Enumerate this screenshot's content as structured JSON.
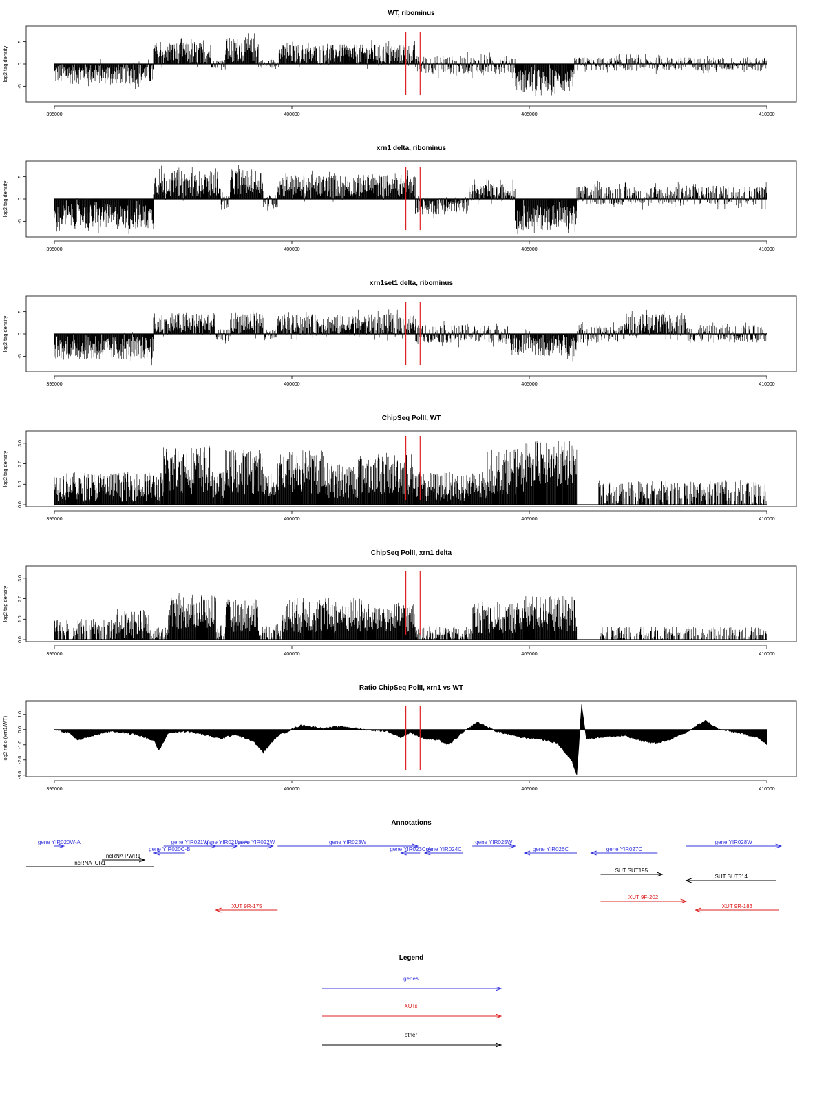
{
  "colors": {
    "gene": "#3333dd",
    "xut": "#dd2222",
    "other": "#000000",
    "marker": "#dd2222",
    "signal": "#000000"
  },
  "chart_data": [
    {
      "type": "bar",
      "title": "WT, ribominus",
      "ylabel": "log2 tag density",
      "xlim": [
        395000,
        410000
      ],
      "ylim": [
        -8.5,
        8.5
      ],
      "x_ticks": [
        395000,
        400000,
        405000,
        410000
      ],
      "y_ticks": [
        -5,
        0,
        5
      ],
      "markers": [
        402400,
        402700
      ],
      "segments": [
        {
          "start": 395000,
          "end": 397100,
          "mean": -2.2,
          "amp": 2.3
        },
        {
          "start": 397100,
          "end": 398300,
          "mean": 2.4,
          "amp": 2.5
        },
        {
          "start": 398300,
          "end": 398600,
          "mean": 0.1,
          "amp": 1.0
        },
        {
          "start": 398600,
          "end": 399300,
          "mean": 3.2,
          "amp": 2.8
        },
        {
          "start": 399300,
          "end": 399700,
          "mean": 0.1,
          "amp": 1.0
        },
        {
          "start": 399700,
          "end": 402600,
          "mean": 2.2,
          "amp": 2.2
        },
        {
          "start": 402600,
          "end": 404700,
          "mean": -0.2,
          "amp": 2.0
        },
        {
          "start": 404700,
          "end": 405950,
          "mean": -3.8,
          "amp": 2.6
        },
        {
          "start": 405950,
          "end": 410000,
          "mean": 0.0,
          "amp": 1.5
        }
      ]
    },
    {
      "type": "bar",
      "title": "xrn1 delta, ribominus",
      "ylabel": "log2 tag density",
      "xlim": [
        395000,
        410000
      ],
      "ylim": [
        -8.5,
        8.5
      ],
      "x_ticks": [
        395000,
        400000,
        405000,
        410000
      ],
      "y_ticks": [
        -5,
        0,
        5
      ],
      "markers": [
        402400,
        402700
      ],
      "segments": [
        {
          "start": 395000,
          "end": 397100,
          "mean": -4.0,
          "amp": 2.8
        },
        {
          "start": 397100,
          "end": 398500,
          "mean": 3.5,
          "amp": 2.8
        },
        {
          "start": 398500,
          "end": 398700,
          "mean": -0.5,
          "amp": 1.5
        },
        {
          "start": 398700,
          "end": 399400,
          "mean": 3.8,
          "amp": 2.8
        },
        {
          "start": 399400,
          "end": 399700,
          "mean": -0.5,
          "amp": 1.5
        },
        {
          "start": 399700,
          "end": 402600,
          "mean": 3.0,
          "amp": 2.5
        },
        {
          "start": 402600,
          "end": 403700,
          "mean": -1.5,
          "amp": 2.0
        },
        {
          "start": 403700,
          "end": 404700,
          "mean": 1.5,
          "amp": 2.0
        },
        {
          "start": 404700,
          "end": 406000,
          "mean": -4.2,
          "amp": 2.8
        },
        {
          "start": 406000,
          "end": 410000,
          "mean": 0.8,
          "amp": 2.2
        }
      ]
    },
    {
      "type": "bar",
      "title": "xrn1set1 delta, ribominus",
      "ylabel": "log2 tag density",
      "xlim": [
        395000,
        410000
      ],
      "ylim": [
        -8.5,
        8.5
      ],
      "x_ticks": [
        395000,
        400000,
        405000,
        410000
      ],
      "y_ticks": [
        -5,
        0,
        5
      ],
      "markers": [
        402400,
        402700
      ],
      "segments": [
        {
          "start": 395000,
          "end": 397100,
          "mean": -3.2,
          "amp": 2.6
        },
        {
          "start": 397100,
          "end": 398400,
          "mean": 2.2,
          "amp": 2.5
        },
        {
          "start": 398400,
          "end": 398700,
          "mean": -0.3,
          "amp": 1.3
        },
        {
          "start": 398700,
          "end": 399400,
          "mean": 2.5,
          "amp": 2.6
        },
        {
          "start": 399400,
          "end": 399700,
          "mean": -0.3,
          "amp": 1.3
        },
        {
          "start": 399700,
          "end": 402600,
          "mean": 2.0,
          "amp": 2.4
        },
        {
          "start": 402600,
          "end": 404600,
          "mean": 0.0,
          "amp": 2.0
        },
        {
          "start": 404600,
          "end": 406000,
          "mean": -2.5,
          "amp": 2.5
        },
        {
          "start": 406000,
          "end": 407000,
          "mean": 0.0,
          "amp": 2.0
        },
        {
          "start": 407000,
          "end": 408300,
          "mean": 2.0,
          "amp": 2.5
        },
        {
          "start": 408300,
          "end": 410000,
          "mean": 0.0,
          "amp": 2.0
        }
      ]
    },
    {
      "type": "bar",
      "title": "ChipSeq PolII, WT",
      "ylabel": "log2 tag density",
      "xlim": [
        395000,
        410000
      ],
      "ylim": [
        -0.1,
        3.6
      ],
      "x_ticks": [
        395000,
        400000,
        405000,
        410000
      ],
      "y_ticks": [
        0.0,
        1.0,
        2.0,
        3.0
      ],
      "markers": [
        402400,
        402700
      ],
      "segments": [
        {
          "start": 395000,
          "end": 397300,
          "mean": 0.8,
          "amp": 0.9
        },
        {
          "start": 397300,
          "end": 398300,
          "mean": 1.6,
          "amp": 1.5
        },
        {
          "start": 398300,
          "end": 398600,
          "mean": 0.9,
          "amp": 0.8
        },
        {
          "start": 398600,
          "end": 399400,
          "mean": 1.5,
          "amp": 1.4
        },
        {
          "start": 399400,
          "end": 399700,
          "mean": 0.9,
          "amp": 0.8
        },
        {
          "start": 399700,
          "end": 400700,
          "mean": 1.5,
          "amp": 1.4
        },
        {
          "start": 400700,
          "end": 401400,
          "mean": 1.1,
          "amp": 1.1
        },
        {
          "start": 401400,
          "end": 402600,
          "mean": 1.4,
          "amp": 1.3
        },
        {
          "start": 402600,
          "end": 404100,
          "mean": 0.8,
          "amp": 0.9
        },
        {
          "start": 404100,
          "end": 404900,
          "mean": 1.5,
          "amp": 1.4
        },
        {
          "start": 404900,
          "end": 406000,
          "mean": 1.9,
          "amp": 1.4
        },
        {
          "start": 406000,
          "end": 406450,
          "mean": 0.0,
          "amp": 0.0
        },
        {
          "start": 406450,
          "end": 410000,
          "mean": 0.5,
          "amp": 0.8
        }
      ]
    },
    {
      "type": "bar",
      "title": "ChipSeq PolII, xrn1 delta",
      "ylabel": "log2 tag density",
      "xlim": [
        395000,
        410000
      ],
      "ylim": [
        -0.1,
        3.6
      ],
      "x_ticks": [
        395000,
        400000,
        405000,
        410000
      ],
      "y_ticks": [
        0.0,
        1.0,
        2.0,
        3.0
      ],
      "markers": [
        402400,
        402700
      ],
      "segments": [
        {
          "start": 395000,
          "end": 396300,
          "mean": 0.4,
          "amp": 0.7
        },
        {
          "start": 396300,
          "end": 397000,
          "mean": 0.7,
          "amp": 0.9
        },
        {
          "start": 397000,
          "end": 397400,
          "mean": 0.3,
          "amp": 0.4
        },
        {
          "start": 397400,
          "end": 398400,
          "mean": 1.3,
          "amp": 1.1
        },
        {
          "start": 398400,
          "end": 398600,
          "mean": 0.4,
          "amp": 0.4
        },
        {
          "start": 398600,
          "end": 399300,
          "mean": 1.1,
          "amp": 1.0
        },
        {
          "start": 399300,
          "end": 399800,
          "mean": 0.4,
          "amp": 0.4
        },
        {
          "start": 399800,
          "end": 401500,
          "mean": 1.1,
          "amp": 1.1
        },
        {
          "start": 401500,
          "end": 402600,
          "mean": 1.0,
          "amp": 0.9
        },
        {
          "start": 402600,
          "end": 403800,
          "mean": 0.3,
          "amp": 0.4
        },
        {
          "start": 403800,
          "end": 404800,
          "mean": 1.0,
          "amp": 1.0
        },
        {
          "start": 404800,
          "end": 406000,
          "mean": 1.2,
          "amp": 1.1
        },
        {
          "start": 406000,
          "end": 406500,
          "mean": 0.0,
          "amp": 0.0
        },
        {
          "start": 406500,
          "end": 410000,
          "mean": 0.2,
          "amp": 0.5
        }
      ]
    },
    {
      "type": "area",
      "title": "Ratio ChipSeq PolII, xrn1 vs WT",
      "ylabel": "log2 ratio (xrn1/WT)",
      "xlim": [
        395000,
        410000
      ],
      "ylim": [
        -3.1,
        1.9
      ],
      "x_ticks": [
        395000,
        400000,
        405000,
        410000
      ],
      "y_ticks": [
        -3,
        -2,
        -1,
        0,
        1
      ],
      "markers": [
        402400,
        402700
      ],
      "profile": [
        [
          395000,
          0.0
        ],
        [
          395300,
          -0.2
        ],
        [
          395500,
          -0.7
        ],
        [
          395800,
          -0.4
        ],
        [
          396200,
          -0.1
        ],
        [
          396700,
          -0.3
        ],
        [
          397100,
          -0.7
        ],
        [
          397200,
          -1.4
        ],
        [
          397400,
          -0.2
        ],
        [
          397800,
          -0.1
        ],
        [
          398100,
          -0.3
        ],
        [
          398500,
          -0.6
        ],
        [
          398800,
          -0.3
        ],
        [
          399200,
          -0.8
        ],
        [
          399400,
          -1.5
        ],
        [
          399700,
          -0.4
        ],
        [
          400200,
          0.3
        ],
        [
          400600,
          0.1
        ],
        [
          401100,
          0.2
        ],
        [
          401500,
          0.0
        ],
        [
          402000,
          -0.1
        ],
        [
          402300,
          -0.5
        ],
        [
          402500,
          -0.2
        ],
        [
          402800,
          -0.6
        ],
        [
          403100,
          -0.7
        ],
        [
          403300,
          -1.0
        ],
        [
          403600,
          -0.2
        ],
        [
          403900,
          0.5
        ],
        [
          404300,
          -0.1
        ],
        [
          404800,
          -0.5
        ],
        [
          405200,
          -0.6
        ],
        [
          405600,
          -0.9
        ],
        [
          405900,
          -2.1
        ],
        [
          406000,
          -3.0
        ],
        [
          406100,
          1.7
        ],
        [
          406200,
          -0.6
        ],
        [
          406500,
          -0.5
        ],
        [
          407000,
          -0.4
        ],
        [
          407300,
          -0.7
        ],
        [
          407700,
          -0.9
        ],
        [
          408000,
          -0.6
        ],
        [
          408300,
          -0.2
        ],
        [
          408700,
          0.6
        ],
        [
          409000,
          0.0
        ],
        [
          409400,
          -0.2
        ],
        [
          409800,
          -0.5
        ],
        [
          410000,
          -1.0
        ]
      ]
    }
  ],
  "annotations": {
    "title": "Annotations",
    "xlim": [
      395000,
      410000
    ],
    "features": [
      {
        "label": "gene YIR020W-A",
        "type": "gene",
        "start": 395000,
        "end": 395200,
        "strand": "+",
        "row": 0
      },
      {
        "label": "gene YIR021W",
        "type": "gene",
        "start": 397300,
        "end": 398400,
        "strand": "+",
        "row": 0
      },
      {
        "label": "gene YIR021W-A",
        "type": "gene",
        "start": 398400,
        "end": 398850,
        "strand": "+",
        "row": 0
      },
      {
        "label": "gene YIR022W",
        "type": "gene",
        "start": 398900,
        "end": 399600,
        "strand": "+",
        "row": 0
      },
      {
        "label": "gene YIR020C-B",
        "type": "gene",
        "start": 397100,
        "end": 397750,
        "strand": "-",
        "row": 1
      },
      {
        "label": "ncRNA PWR1",
        "type": "other",
        "start": 396000,
        "end": 396900,
        "strand": "+",
        "row": 2
      },
      {
        "label": "ncRNA ICR1",
        "type": "other",
        "start": 394400,
        "end": 397100,
        "strand": "-",
        "row": 3
      },
      {
        "label": "gene YIR023W",
        "type": "gene",
        "start": 399700,
        "end": 402650,
        "strand": "+",
        "row": 0
      },
      {
        "label": "gene YIR023C-A",
        "type": "gene",
        "start": 402300,
        "end": 402700,
        "strand": "-",
        "row": 1
      },
      {
        "label": "gene YIR024C",
        "type": "gene",
        "start": 402800,
        "end": 403600,
        "strand": "-",
        "row": 1
      },
      {
        "label": "gene YIR025W",
        "type": "gene",
        "start": 403800,
        "end": 404700,
        "strand": "+",
        "row": 0
      },
      {
        "label": "gene YIR026C",
        "type": "gene",
        "start": 404900,
        "end": 406000,
        "strand": "-",
        "row": 1
      },
      {
        "label": "gene YIR027C",
        "type": "gene",
        "start": 406300,
        "end": 407700,
        "strand": "-",
        "row": 1
      },
      {
        "label": "gene YIR028W",
        "type": "gene",
        "start": 408300,
        "end": 410300,
        "strand": "+",
        "row": 0
      },
      {
        "label": "SUT SUT195",
        "type": "other",
        "start": 406500,
        "end": 407800,
        "strand": "+",
        "row": 4
      },
      {
        "label": "SUT SUT614",
        "type": "other",
        "start": 408300,
        "end": 410200,
        "strand": "-",
        "row": 5
      },
      {
        "label": "XUT 9F-202",
        "type": "xut",
        "start": 406500,
        "end": 408300,
        "strand": "+",
        "row": 6
      },
      {
        "label": "XUT 9R-183",
        "type": "xut",
        "start": 408500,
        "end": 410250,
        "strand": "-",
        "row": 7
      },
      {
        "label": "XUT 9R-175",
        "type": "xut",
        "start": 398400,
        "end": 399700,
        "strand": "-",
        "row": 7
      }
    ]
  },
  "legend": {
    "title": "Legend",
    "items": [
      {
        "label": "genes",
        "type": "gene"
      },
      {
        "label": "XUTs",
        "type": "xut"
      },
      {
        "label": "other",
        "type": "other"
      }
    ]
  }
}
